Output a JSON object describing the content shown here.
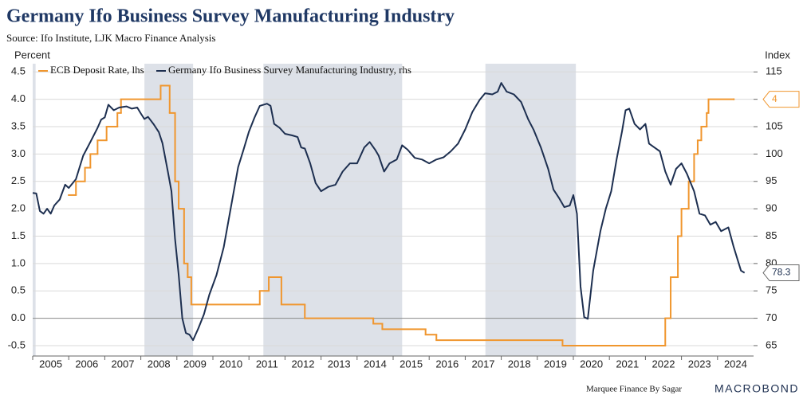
{
  "chart_data": {
    "type": "dual-axis-line",
    "title": "Germany Ifo Business Survey Manufacturing Industry",
    "subtitle": "Source: Ifo Institute, LJK Macro Finance Analysis",
    "y_label": "Percent",
    "y2_label": "Index",
    "footer": "Marquee Finance By Sagar",
    "brand": "MACROBOND",
    "xlim": [
      2005,
      2025
    ],
    "xticks": [
      {
        "value": 2005.5,
        "label": "2005"
      },
      {
        "value": 2006.5,
        "label": "2006"
      },
      {
        "value": 2007.5,
        "label": "2007"
      },
      {
        "value": 2008.5,
        "label": "2008"
      },
      {
        "value": 2009.5,
        "label": "2009"
      },
      {
        "value": 2010.5,
        "label": "2010"
      },
      {
        "value": 2011.5,
        "label": "2011"
      },
      {
        "value": 2012.5,
        "label": "2012"
      },
      {
        "value": 2013.5,
        "label": "2013"
      },
      {
        "value": 2014.5,
        "label": "2014"
      },
      {
        "value": 2015.5,
        "label": "2015"
      },
      {
        "value": 2016.5,
        "label": "2016"
      },
      {
        "value": 2017.5,
        "label": "2017"
      },
      {
        "value": 2018.5,
        "label": "2018"
      },
      {
        "value": 2019.5,
        "label": "2019"
      },
      {
        "value": 2020.5,
        "label": "2020"
      },
      {
        "value": 2021.5,
        "label": "2021"
      },
      {
        "value": 2022.5,
        "label": "2022"
      },
      {
        "value": 2023.5,
        "label": "2023"
      },
      {
        "value": 2024.5,
        "label": "2024"
      }
    ],
    "ylim": [
      -0.69,
      4.65
    ],
    "yticks": [
      4.5,
      {
        "value": 4.0,
        "label": "4.0"
      },
      3.5,
      {
        "value": 3.0,
        "label": "3.0"
      },
      2.5,
      {
        "value": 2.0,
        "label": "2.0"
      },
      1.5,
      {
        "value": 1.0,
        "label": "1.0"
      },
      0.5,
      {
        "value": 0.0,
        "label": "0.0"
      },
      -0.5
    ],
    "y2lim": [
      63.1,
      116.5
    ],
    "y2ticks": [
      115,
      110,
      105,
      100,
      95,
      90,
      85,
      80,
      75,
      70,
      65
    ],
    "grid": true,
    "shaded_periods": [
      [
        2005.0,
        2005.08
      ],
      [
        2008.1,
        2009.45
      ],
      [
        2011.4,
        2015.25
      ],
      [
        2017.56,
        2020.07
      ]
    ],
    "shade_color": "#dde1e8",
    "series": [
      {
        "name": "ECB Deposit Rate, lhs",
        "color": "#f0962e",
        "step": true,
        "x": [
          2006.0,
          2006.2,
          2006.45,
          2006.6,
          2006.8,
          2007.05,
          2007.35,
          2007.45,
          2008.55,
          2008.8,
          2008.95,
          2009.05,
          2009.2,
          2009.3,
          2009.4,
          2011.3,
          2011.55,
          2011.9,
          2012.55,
          2014.45,
          2014.7,
          2015.9,
          2016.2,
          2019.7,
          2022.55,
          2022.7,
          2022.9,
          2023.0,
          2023.2,
          2023.35,
          2023.45,
          2023.55,
          2023.7,
          2023.75,
          2024.45
        ],
        "values": [
          2.25,
          2.5,
          2.75,
          3.0,
          3.25,
          3.5,
          3.75,
          4.0,
          4.25,
          3.75,
          2.5,
          2.0,
          1.0,
          0.75,
          0.25,
          0.5,
          0.75,
          0.25,
          0.0,
          -0.1,
          -0.2,
          -0.3,
          -0.4,
          -0.5,
          0.0,
          0.75,
          1.5,
          2.0,
          2.5,
          3.0,
          3.25,
          3.5,
          3.75,
          4.0,
          4.0
        ]
      },
      {
        "name": "Germany Ifo Business Survey Manufacturing Industry, rhs",
        "color": "#1d2f50",
        "axis": "y2",
        "x": [
          2005.0,
          2005.1,
          2005.2,
          2005.3,
          2005.4,
          2005.5,
          2005.6,
          2005.75,
          2005.9,
          2006.0,
          2006.2,
          2006.4,
          2006.6,
          2006.8,
          2006.9,
          2007.0,
          2007.1,
          2007.25,
          2007.4,
          2007.6,
          2007.75,
          2007.9,
          2008.0,
          2008.1,
          2008.2,
          2008.35,
          2008.5,
          2008.6,
          2008.75,
          2008.85,
          2008.95,
          2009.05,
          2009.15,
          2009.25,
          2009.35,
          2009.45,
          2009.6,
          2009.75,
          2009.9,
          2010.1,
          2010.3,
          2010.5,
          2010.7,
          2010.85,
          2011.0,
          2011.15,
          2011.3,
          2011.5,
          2011.6,
          2011.7,
          2011.85,
          2012.0,
          2012.2,
          2012.35,
          2012.45,
          2012.55,
          2012.7,
          2012.85,
          2013.0,
          2013.2,
          2013.4,
          2013.6,
          2013.8,
          2014.0,
          2014.2,
          2014.35,
          2014.5,
          2014.6,
          2014.75,
          2014.9,
          2015.1,
          2015.25,
          2015.4,
          2015.6,
          2015.8,
          2016.0,
          2016.2,
          2016.4,
          2016.6,
          2016.8,
          2017.0,
          2017.2,
          2017.4,
          2017.55,
          2017.75,
          2017.9,
          2018.0,
          2018.15,
          2018.35,
          2018.55,
          2018.75,
          2018.9,
          2019.1,
          2019.3,
          2019.45,
          2019.6,
          2019.75,
          2019.9,
          2020.0,
          2020.1,
          2020.2,
          2020.3,
          2020.4,
          2020.55,
          2020.75,
          2020.9,
          2021.05,
          2021.2,
          2021.35,
          2021.45,
          2021.55,
          2021.7,
          2021.85,
          2022.0,
          2022.1,
          2022.25,
          2022.4,
          2022.55,
          2022.7,
          2022.85,
          2023.0,
          2023.15,
          2023.35,
          2023.5,
          2023.65,
          2023.8,
          2023.95,
          2024.1,
          2024.3,
          2024.45,
          2024.65,
          2024.75
        ],
        "values": [
          92.9,
          92.8,
          89.6,
          89.1,
          90.0,
          89.1,
          90.6,
          91.7,
          94.4,
          93.8,
          95.4,
          99.7,
          102.2,
          104.8,
          106.3,
          106.7,
          109.0,
          108.0,
          108.5,
          108.7,
          108.3,
          108.5,
          107.4,
          106.4,
          106.8,
          105.5,
          104.0,
          102.0,
          96.8,
          93.2,
          84.5,
          77.9,
          70.0,
          67.3,
          67.0,
          66.0,
          68.2,
          70.7,
          74.3,
          77.9,
          83.0,
          90.3,
          97.6,
          100.8,
          104.1,
          106.6,
          108.8,
          109.2,
          108.8,
          105.5,
          104.8,
          103.7,
          103.4,
          103.1,
          101.2,
          101.0,
          98.3,
          94.7,
          93.2,
          94.0,
          94.4,
          96.8,
          98.3,
          98.3,
          101.2,
          102.2,
          100.8,
          99.7,
          96.8,
          98.3,
          99.0,
          101.6,
          100.8,
          99.3,
          99.0,
          98.3,
          99.0,
          99.4,
          100.5,
          101.9,
          104.5,
          107.7,
          109.9,
          111.1,
          110.9,
          111.4,
          113.0,
          111.4,
          110.9,
          109.5,
          106.3,
          104.4,
          101.2,
          97.3,
          93.5,
          92.0,
          90.3,
          90.6,
          92.5,
          89.1,
          75.8,
          70.2,
          69.9,
          78.7,
          85.9,
          90.0,
          93.2,
          99.0,
          104.1,
          108.0,
          108.3,
          105.5,
          104.5,
          105.5,
          101.9,
          101.2,
          100.5,
          96.8,
          94.4,
          97.3,
          98.3,
          96.4,
          93.2,
          89.1,
          88.8,
          87.1,
          87.6,
          85.9,
          86.6,
          83.0,
          78.7,
          78.3
        ]
      }
    ]
  }
}
